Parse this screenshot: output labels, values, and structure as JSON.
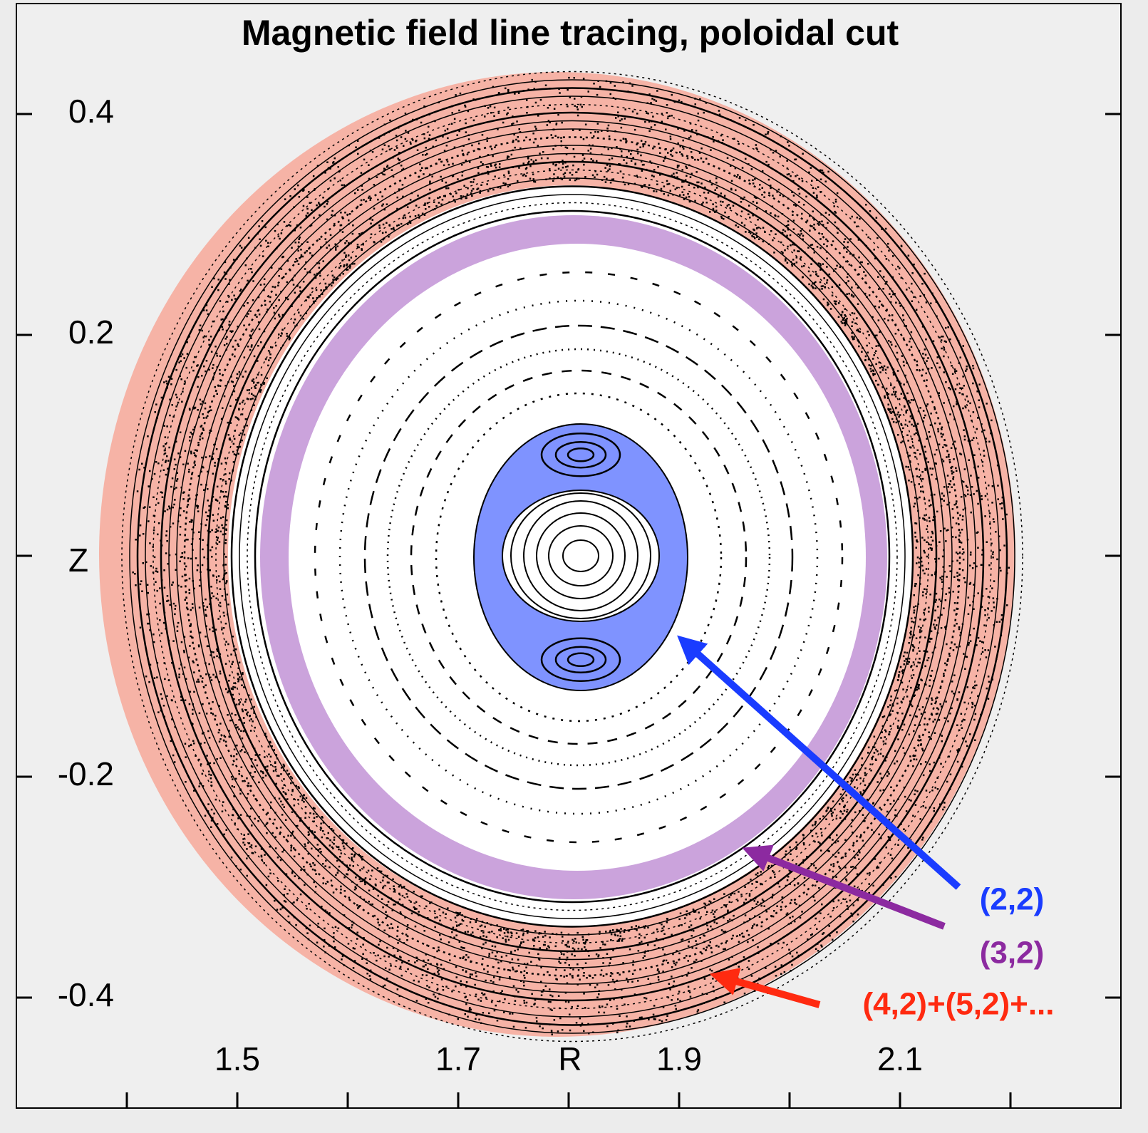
{
  "chart_data": {
    "type": "poincare",
    "title": "Magnetic field line tracing, poloidal cut",
    "x_label": "R",
    "y_label": "Z",
    "xlim": [
      1.3,
      2.3
    ],
    "ylim": [
      -0.5,
      0.5
    ],
    "xticks": [
      1.5,
      1.7,
      1.9,
      2.1
    ],
    "xminorticks": [
      1.4,
      1.6,
      1.8,
      2.0,
      2.2
    ],
    "yticks": [
      0.4,
      0.2,
      -0.2,
      -0.4
    ],
    "yminorticks": [
      0
    ],
    "annotations": [
      {
        "text": "(2,2)",
        "color": "#1a3cff"
      },
      {
        "text": "(3,2)",
        "color": "#8c2aa0"
      },
      {
        "text": "(4,2)+(5,2)+...",
        "color": "#ff2a10"
      }
    ]
  }
}
